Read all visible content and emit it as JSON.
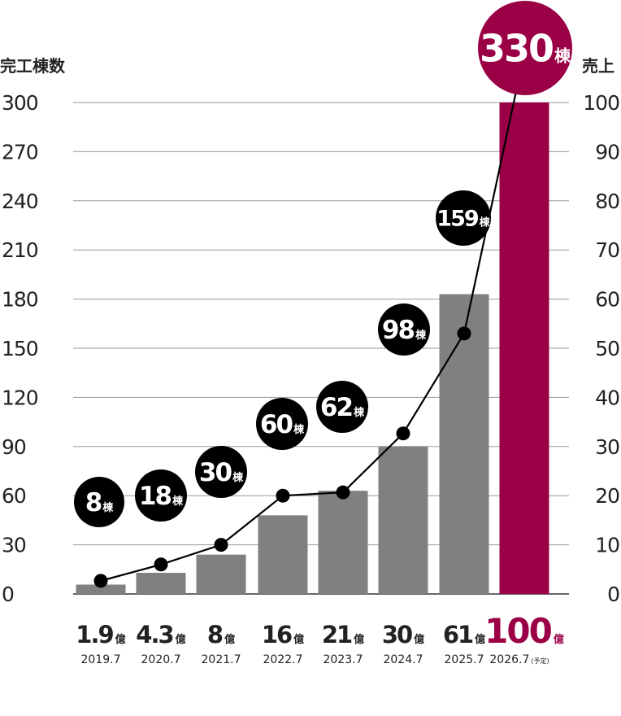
{
  "chart_data": {
    "type": "bar",
    "left_axis_title": "完工棟数",
    "right_axis_title": "売上",
    "left_ylim": [
      0,
      300
    ],
    "right_ylim": [
      0,
      100
    ],
    "left_ticks": [
      "300",
      "270",
      "240",
      "210",
      "180",
      "150",
      "120",
      "90",
      "60",
      "30",
      "0"
    ],
    "right_ticks": [
      "100",
      "90",
      "80",
      "70",
      "60",
      "50",
      "40",
      "30",
      "20",
      "10",
      "0"
    ],
    "grid": true,
    "categories": [
      "2019.7",
      "2020.7",
      "2021.7",
      "2022.7",
      "2023.7",
      "2024.7",
      "2025.7",
      "2026.7"
    ],
    "forecast_note": "(予定)",
    "revenue": {
      "values": [
        1.9,
        4.3,
        8,
        16,
        21,
        30,
        61,
        100
      ],
      "labels": [
        "1.9",
        "4.3",
        "8",
        "16",
        "21",
        "30",
        "61",
        "100"
      ],
      "unit": "億"
    },
    "buildings": {
      "values": [
        8,
        18,
        30,
        60,
        62,
        98,
        159,
        330
      ],
      "labels": [
        "8",
        "18",
        "30",
        "60",
        "62",
        "98",
        "159",
        "330"
      ],
      "unit": "棟"
    },
    "colors": {
      "bar": "#808080",
      "highlight": "#9b0046",
      "line": "#000000",
      "bubble": "#000000",
      "grid": "#9a9a9a",
      "text": "#222222"
    }
  }
}
